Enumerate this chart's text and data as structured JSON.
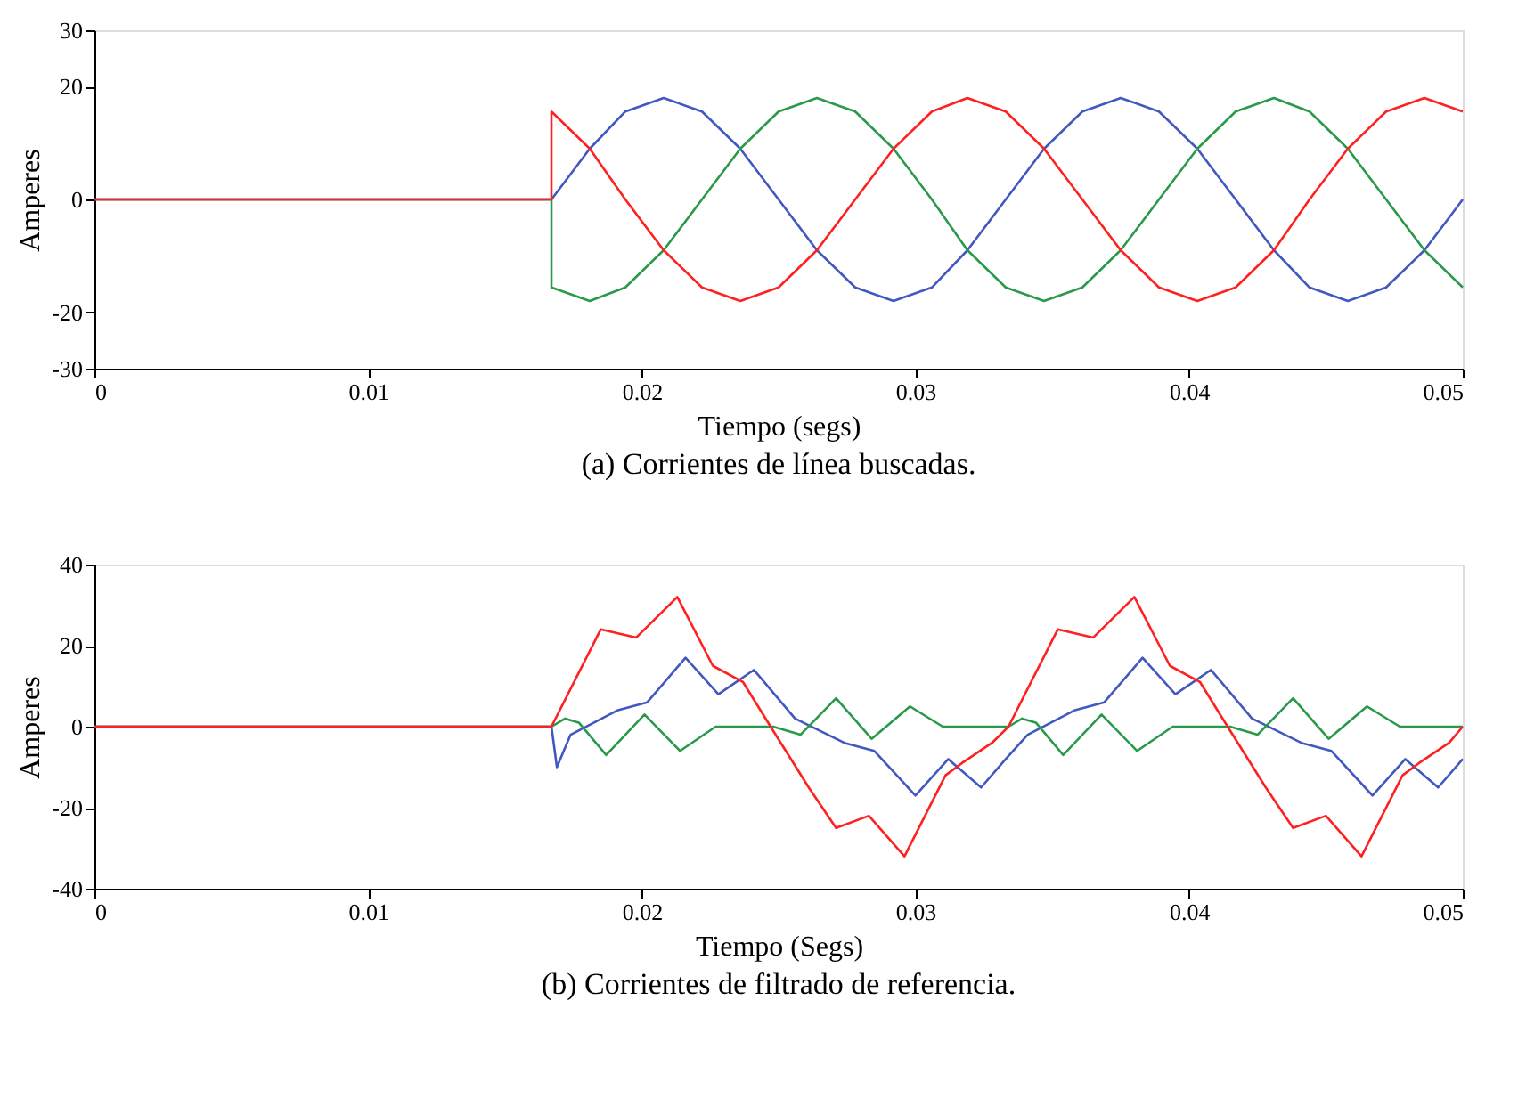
{
  "chart_data": [
    {
      "type": "line",
      "xlabel": "Tiempo (segs)",
      "ylabel": "Amperes",
      "annotations": [
        "(a) Corrientes de línea buscadas."
      ],
      "xlim": [
        0,
        0.05
      ],
      "xticks": [
        0,
        0.01,
        0.02,
        0.03,
        0.04,
        0.05
      ],
      "ylim": [
        -30,
        30
      ],
      "yticks": [
        -30,
        -20,
        0,
        20,
        30
      ],
      "grid": false,
      "marker": "none",
      "line_style": "solid",
      "series": [
        {
          "color": "#4058c0",
          "x": [
            0,
            0.0167,
            0.0181,
            0.0194,
            0.0208,
            0.0222,
            0.0236,
            0.025,
            0.0264,
            0.0278,
            0.0292,
            0.0306,
            0.0319,
            0.0333,
            0.0347,
            0.0361,
            0.0375,
            0.0389,
            0.0403,
            0.0417,
            0.0431,
            0.0444,
            0.0458,
            0.0472,
            0.0486,
            0.05
          ],
          "values": [
            0,
            0,
            9,
            15.6,
            18,
            15.6,
            9,
            0,
            -9,
            -15.6,
            -18,
            -15.6,
            -9,
            0,
            9,
            15.6,
            18,
            15.6,
            9,
            0,
            -9,
            -15.6,
            -18,
            -15.6,
            -9,
            0
          ]
        },
        {
          "color": "#2a9a4a",
          "x": [
            0,
            0.0167,
            0.0167,
            0.0181,
            0.0194,
            0.0208,
            0.0222,
            0.0236,
            0.025,
            0.0264,
            0.0278,
            0.0292,
            0.0306,
            0.0319,
            0.0333,
            0.0347,
            0.0361,
            0.0375,
            0.0389,
            0.0403,
            0.0417,
            0.0431,
            0.0444,
            0.0458,
            0.0472,
            0.0486,
            0.05
          ],
          "values": [
            0,
            0,
            -15.6,
            -18,
            -15.6,
            -9,
            0,
            9,
            15.6,
            18,
            15.6,
            9,
            0,
            -9,
            -15.6,
            -18,
            -15.6,
            -9,
            0,
            9,
            15.6,
            18,
            15.6,
            9,
            0,
            -9,
            -15.6
          ]
        },
        {
          "color": "#ff2020",
          "x": [
            0,
            0.0167,
            0.0167,
            0.0181,
            0.0194,
            0.0208,
            0.0222,
            0.0236,
            0.025,
            0.0264,
            0.0278,
            0.0292,
            0.0306,
            0.0319,
            0.0333,
            0.0347,
            0.0361,
            0.0375,
            0.0389,
            0.0403,
            0.0417,
            0.0431,
            0.0444,
            0.0458,
            0.0472,
            0.0486,
            0.05
          ],
          "values": [
            0,
            0,
            15.6,
            9,
            0,
            -9,
            -15.6,
            -18,
            -15.6,
            -9,
            0,
            9,
            15.6,
            18,
            15.6,
            9,
            0,
            -9,
            -15.6,
            -18,
            -15.6,
            -9,
            0,
            9,
            15.6,
            18,
            15.6
          ]
        }
      ]
    },
    {
      "type": "line",
      "xlabel": "Tiempo (Segs)",
      "ylabel": "Amperes",
      "annotations": [
        "(b) Corrientes de filtrado de referencia."
      ],
      "xlim": [
        0,
        0.05
      ],
      "xticks": [
        0,
        0.01,
        0.02,
        0.03,
        0.04,
        0.05
      ],
      "ylim": [
        -40,
        40
      ],
      "yticks": [
        -40,
        -20,
        0,
        20,
        40
      ],
      "grid": false,
      "marker": "none",
      "line_style": "solid",
      "series": [
        {
          "color": "#4058c0",
          "x": [
            0,
            0.0167,
            0.0169,
            0.0174,
            0.0191,
            0.0202,
            0.0216,
            0.0228,
            0.0241,
            0.0256,
            0.0274,
            0.0285,
            0.03,
            0.0312,
            0.0324,
            0.0333,
            0.0341,
            0.0358,
            0.0369,
            0.0383,
            0.0395,
            0.0408,
            0.0423,
            0.0441,
            0.0452,
            0.0467,
            0.0479,
            0.0491,
            0.05
          ],
          "values": [
            0,
            0,
            -10,
            -2,
            4,
            6,
            17,
            8,
            14,
            2,
            -4,
            -6,
            -17,
            -8,
            -15,
            -8,
            -2,
            4,
            6,
            17,
            8,
            14,
            2,
            -4,
            -6,
            -17,
            -8,
            -15,
            -8
          ]
        },
        {
          "color": "#2a9a4a",
          "x": [
            0,
            0.0167,
            0.0172,
            0.0177,
            0.0187,
            0.0201,
            0.0214,
            0.0227,
            0.0248,
            0.0258,
            0.0271,
            0.0284,
            0.0298,
            0.031,
            0.0334,
            0.0339,
            0.0344,
            0.0354,
            0.0368,
            0.0381,
            0.0394,
            0.0415,
            0.0425,
            0.0438,
            0.0451,
            0.0465,
            0.0477,
            0.05
          ],
          "values": [
            0,
            0,
            2,
            1,
            -7,
            3,
            -6,
            0,
            0,
            -2,
            7,
            -3,
            5,
            0,
            0,
            2,
            1,
            -7,
            3,
            -6,
            0,
            0,
            -2,
            7,
            -3,
            5,
            0,
            0
          ]
        },
        {
          "color": "#ff2020",
          "x": [
            0,
            0.0167,
            0.0185,
            0.0198,
            0.0213,
            0.0226,
            0.0237,
            0.0248,
            0.0261,
            0.0271,
            0.0283,
            0.0296,
            0.0311,
            0.0317,
            0.0328,
            0.0334,
            0.0352,
            0.0365,
            0.038,
            0.0393,
            0.0404,
            0.0415,
            0.0428,
            0.0438,
            0.045,
            0.0463,
            0.0478,
            0.0484,
            0.0495,
            0.05
          ],
          "values": [
            0,
            0,
            24,
            22,
            32,
            15,
            11,
            -1,
            -15,
            -25,
            -22,
            -32,
            -12,
            -9,
            -4,
            0,
            24,
            22,
            32,
            15,
            11,
            -1,
            -15,
            -25,
            -22,
            -32,
            -12,
            -9,
            -4,
            0
          ]
        }
      ]
    }
  ]
}
